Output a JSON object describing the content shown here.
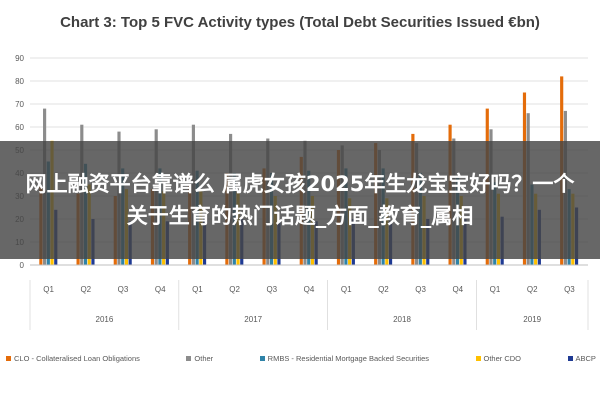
{
  "chart_data": {
    "type": "bar",
    "title": "Chart 3: Top 5 FVC Activity types (Total Debt Securities Issued €bn)",
    "categories": [
      "Q1",
      "Q2",
      "Q3",
      "Q4",
      "Q1",
      "Q2",
      "Q3",
      "Q4",
      "Q1",
      "Q2",
      "Q3",
      "Q4",
      "Q1",
      "Q2",
      "Q3"
    ],
    "groups": [
      {
        "label": "2016",
        "count": 4
      },
      {
        "label": "2017",
        "count": 4
      },
      {
        "label": "2018",
        "count": 4
      },
      {
        "label": "2019",
        "count": 3
      }
    ],
    "yticks": [
      0,
      10,
      20,
      30,
      40,
      50,
      60,
      70,
      80,
      90
    ],
    "ylim": [
      0,
      90
    ],
    "series": [
      {
        "name": "CLO - Collateralised Loan Obligations",
        "color": "#e46c0a",
        "values": [
          34,
          31,
          30,
          33,
          35,
          40,
          42,
          47,
          50,
          53,
          57,
          61,
          68,
          75,
          82
        ]
      },
      {
        "name": "Other",
        "color": "#8c8c8c",
        "values": [
          68,
          61,
          58,
          59,
          61,
          57,
          55,
          54,
          52,
          50,
          53,
          55,
          59,
          66,
          67
        ]
      },
      {
        "name": "RMBS - Residential Mortgage Backed Securities",
        "color": "#2f83a8",
        "values": [
          45,
          44,
          42,
          42,
          41,
          40,
          40,
          41,
          42,
          42,
          40,
          38,
          36,
          35,
          33
        ]
      },
      {
        "name": "Other CDO",
        "color": "#ffc000",
        "values": [
          54,
          35,
          33,
          32,
          32,
          32,
          30,
          30,
          29,
          29,
          30,
          30,
          31,
          31,
          31
        ]
      },
      {
        "name": "ABCP",
        "color": "#1f3a93",
        "values": [
          24,
          20,
          19,
          19,
          21,
          20,
          19,
          19,
          20,
          19,
          20,
          20,
          21,
          24,
          25
        ]
      }
    ],
    "legend_position": "bottom",
    "grid": true
  },
  "overlay": {
    "text": "网上融资平台靠谱么 属虎女孩2025年生龙宝宝好吗？一个关于生育的热门话题_方面_教育_属相"
  }
}
